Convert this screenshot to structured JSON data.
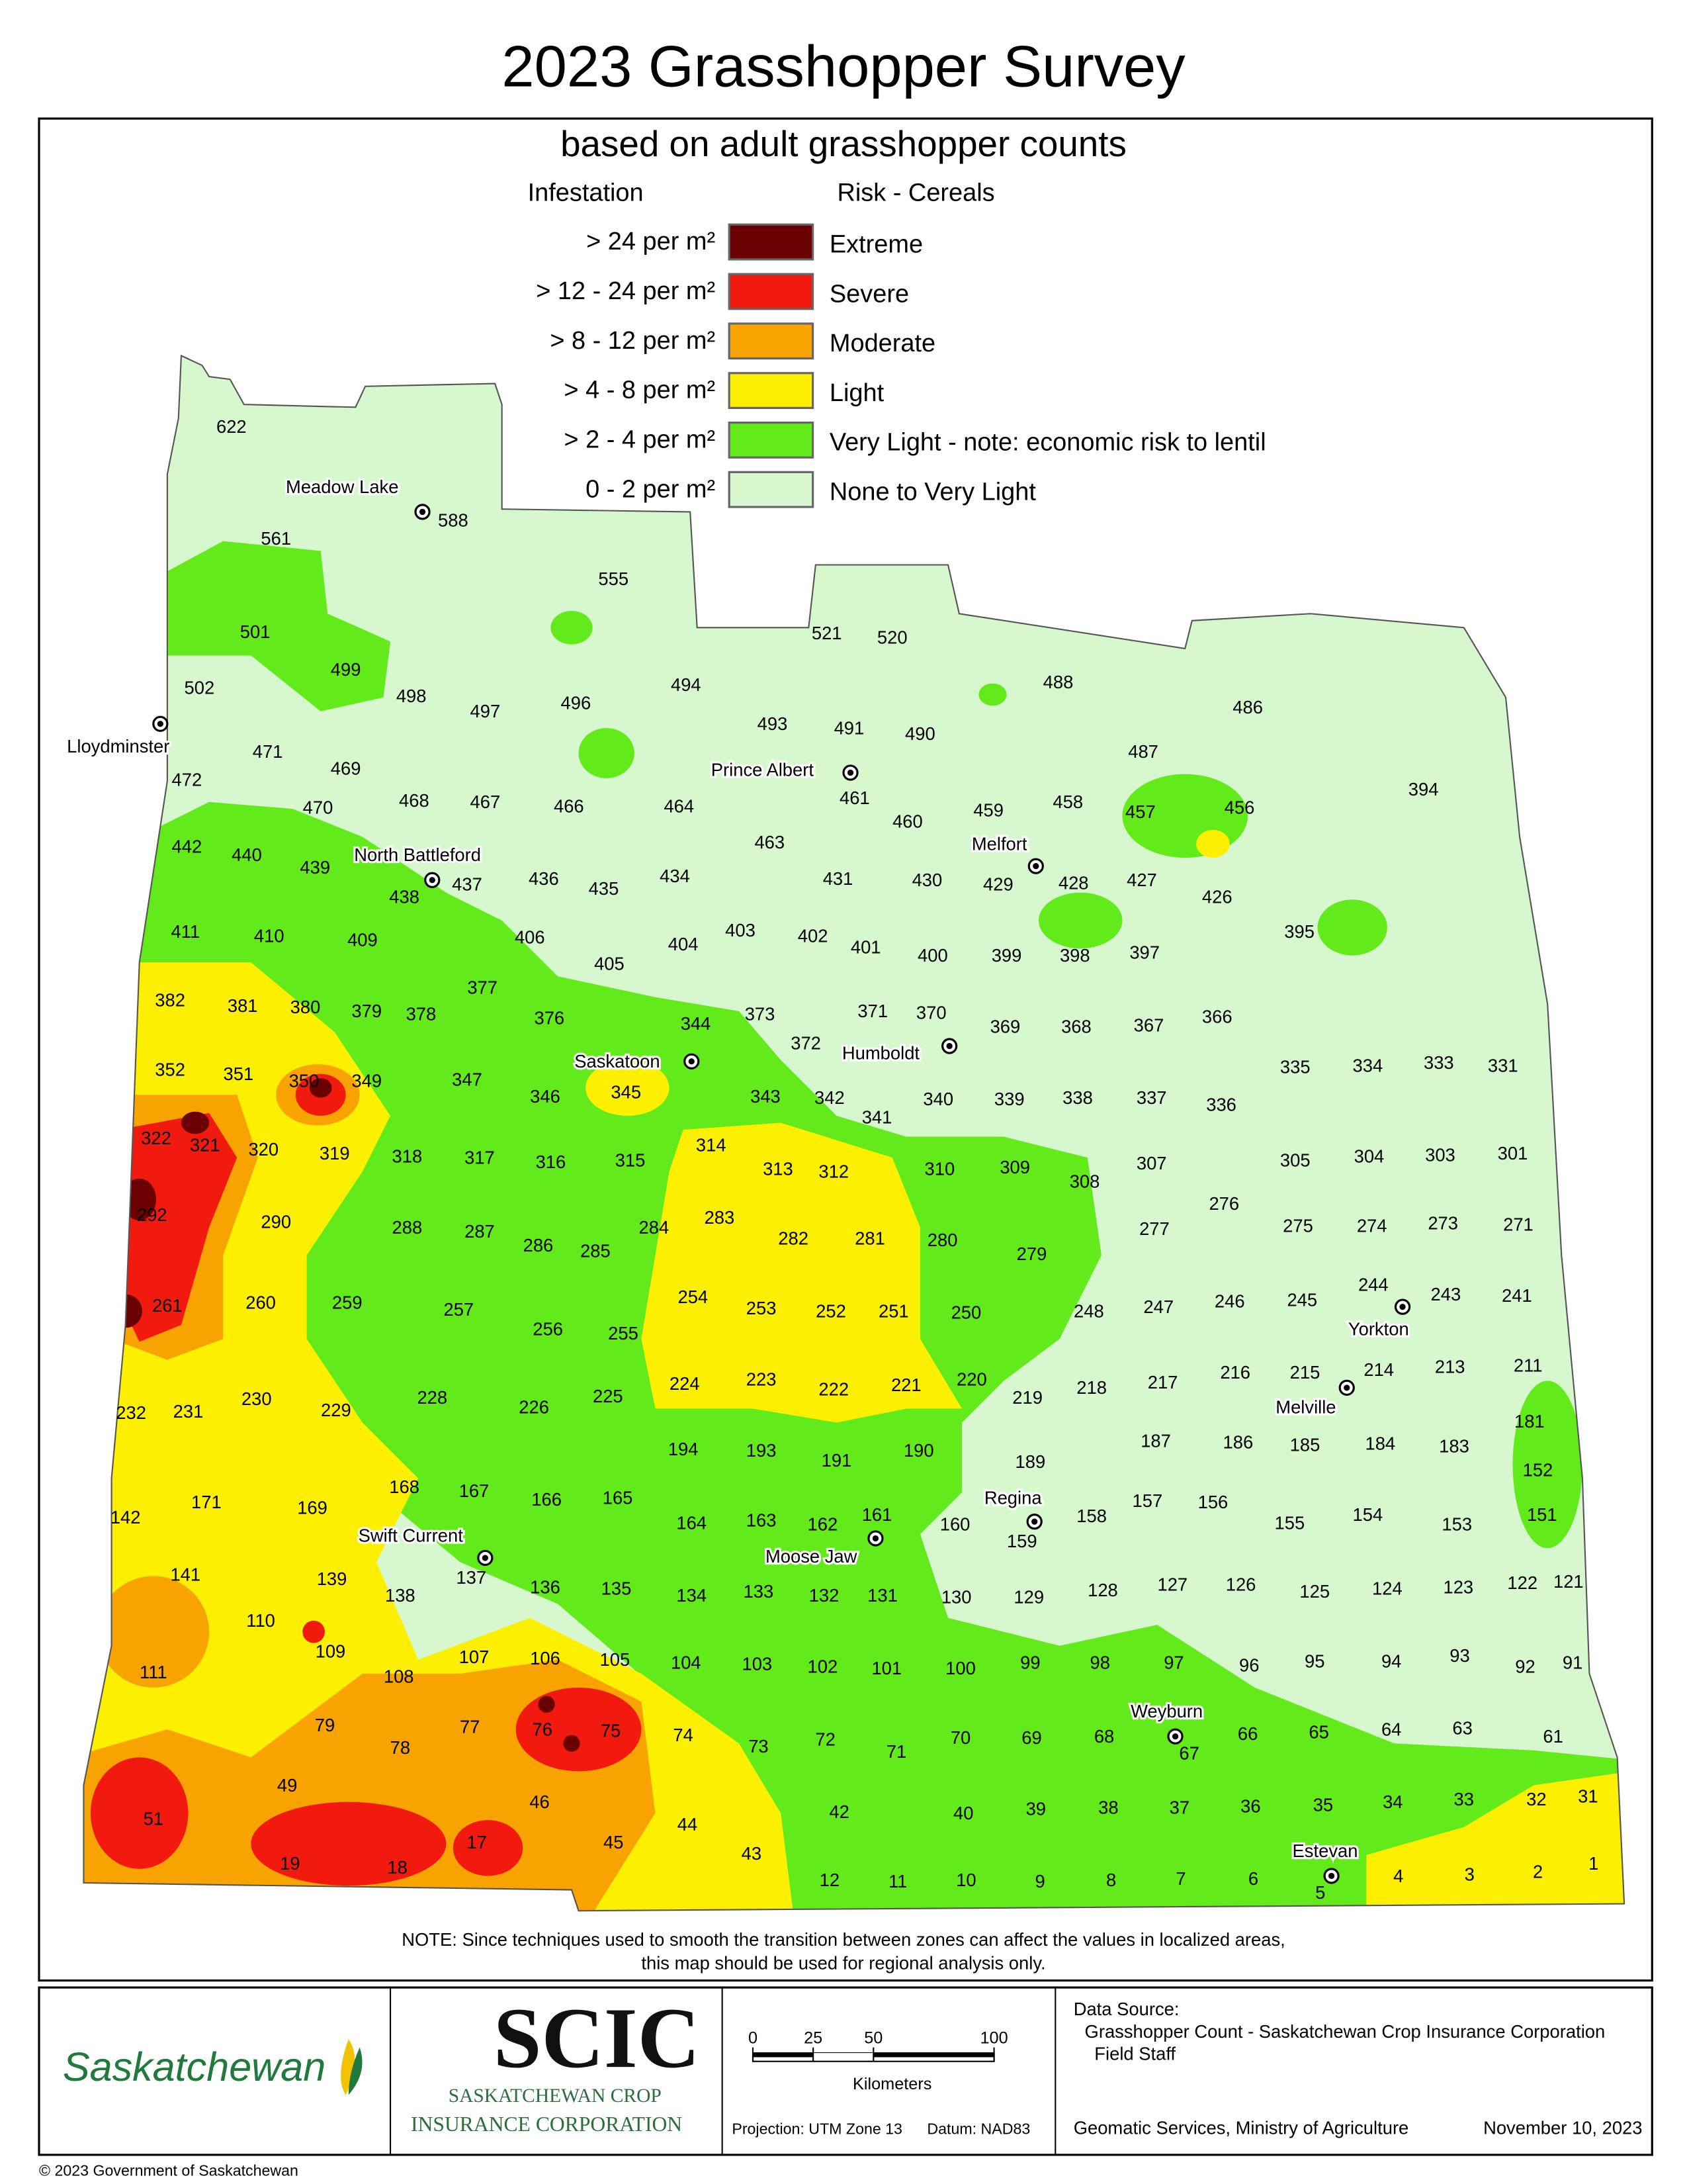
{
  "header": {
    "title": "2023 Grasshopper Survey",
    "subtitle": "based on adult grasshopper counts"
  },
  "legend": {
    "infestation_heading": "Infestation",
    "risk_heading": "Risk - Cereals",
    "items": [
      {
        "infestation": "> 24 per m²",
        "risk": "Extreme",
        "color": "#6b0000"
      },
      {
        "infestation": "> 12 - 24 per m²",
        "risk": "Severe",
        "color": "#f21a0f"
      },
      {
        "infestation": ">  8 - 12 per m²",
        "risk": "Moderate",
        "color": "#f9a300"
      },
      {
        "infestation": ">  4 -   8 per m²",
        "risk": "Light",
        "color": "#fcf000"
      },
      {
        "infestation": ">  2 -   4 per m²",
        "risk": "Very Light - note: economic risk to lentil",
        "color": "#62ea1a"
      },
      {
        "infestation": "0 -   2 per m²",
        "risk": "None to Very Light",
        "color": "#d7f7cf"
      }
    ]
  },
  "cities": [
    {
      "name": "Meadow Lake",
      "rm": 588
    },
    {
      "name": "Lloydminster"
    },
    {
      "name": "Prince Albert"
    },
    {
      "name": "Melfort"
    },
    {
      "name": "North Battleford"
    },
    {
      "name": "Saskatoon"
    },
    {
      "name": "Humboldt"
    },
    {
      "name": "Yorkton"
    },
    {
      "name": "Melville"
    },
    {
      "name": "Regina"
    },
    {
      "name": "Swift Current"
    },
    {
      "name": "Moose Jaw"
    },
    {
      "name": "Weyburn"
    },
    {
      "name": "Estevan"
    }
  ],
  "municipalities": [
    622,
    561,
    555,
    501,
    499,
    498,
    497,
    496,
    494,
    493,
    491,
    490,
    521,
    520,
    488,
    486,
    502,
    471,
    469,
    472,
    468,
    467,
    466,
    464,
    461,
    460,
    459,
    458,
    457,
    456,
    487,
    394,
    442,
    440,
    439,
    470,
    438,
    437,
    436,
    435,
    434,
    463,
    431,
    430,
    429,
    428,
    427,
    426,
    411,
    410,
    409,
    406,
    405,
    404,
    403,
    402,
    401,
    400,
    399,
    398,
    397,
    395,
    382,
    381,
    380,
    379,
    378,
    377,
    376,
    373,
    372,
    371,
    370,
    369,
    368,
    367,
    366,
    344,
    352,
    351,
    350,
    349,
    347,
    346,
    345,
    343,
    342,
    341,
    340,
    339,
    338,
    337,
    336,
    335,
    334,
    333,
    331,
    322,
    321,
    320,
    319,
    318,
    317,
    316,
    315,
    314,
    313,
    312,
    310,
    309,
    308,
    307,
    305,
    304,
    303,
    301,
    292,
    290,
    288,
    287,
    286,
    285,
    284,
    283,
    282,
    281,
    280,
    279,
    277,
    276,
    275,
    274,
    273,
    271,
    261,
    260,
    259,
    257,
    256,
    255,
    254,
    253,
    252,
    251,
    250,
    248,
    247,
    246,
    245,
    244,
    243,
    241,
    232,
    231,
    230,
    229,
    228,
    226,
    225,
    224,
    223,
    222,
    221,
    220,
    219,
    218,
    217,
    216,
    215,
    214,
    213,
    211,
    194,
    193,
    191,
    190,
    189,
    187,
    186,
    185,
    184,
    183,
    181,
    152,
    171,
    169,
    168,
    167,
    166,
    165,
    164,
    163,
    162,
    161,
    160,
    159,
    158,
    157,
    156,
    155,
    154,
    153,
    151,
    142,
    141,
    139,
    138,
    137,
    136,
    135,
    134,
    133,
    132,
    131,
    130,
    129,
    128,
    127,
    126,
    125,
    124,
    123,
    122,
    121,
    110,
    111,
    109,
    108,
    107,
    106,
    105,
    104,
    103,
    102,
    101,
    100,
    99,
    98,
    97,
    96,
    95,
    94,
    93,
    92,
    91,
    79,
    78,
    77,
    76,
    75,
    74,
    73,
    72,
    71,
    70,
    69,
    68,
    67,
    66,
    65,
    64,
    63,
    61,
    51,
    49,
    46,
    45,
    44,
    43,
    42,
    40,
    39,
    38,
    37,
    36,
    35,
    34,
    33,
    32,
    31,
    19,
    18,
    17,
    12,
    11,
    10,
    9,
    8,
    7,
    6,
    5,
    4,
    3,
    2,
    1
  ],
  "note": [
    "NOTE:  Since techniques used to smooth the transition between zones can affect the values in localized areas,",
    "this map should be used for regional analysis only."
  ],
  "footer": {
    "saskatchewan": "Saskatchewan",
    "scic": "SCIC",
    "scic_name": [
      "SASKATCHEWAN CROP",
      "INSURANCE CORPORATION"
    ],
    "scale_ticks": [
      0,
      25,
      50,
      100
    ],
    "scale_unit": "Kilometers",
    "projection": "Projection: UTM Zone 13",
    "datum": "Datum: NAD83",
    "source_heading": "Data Source:",
    "source": "Grasshopper Count - Saskatchewan Crop Insurance Corporation",
    "source_2": "Field Staff",
    "producer": "Geomatic Services, Ministry of Agriculture",
    "date": "November 10, 2023",
    "copyright": "© 2023 Government of Saskatchewan"
  }
}
